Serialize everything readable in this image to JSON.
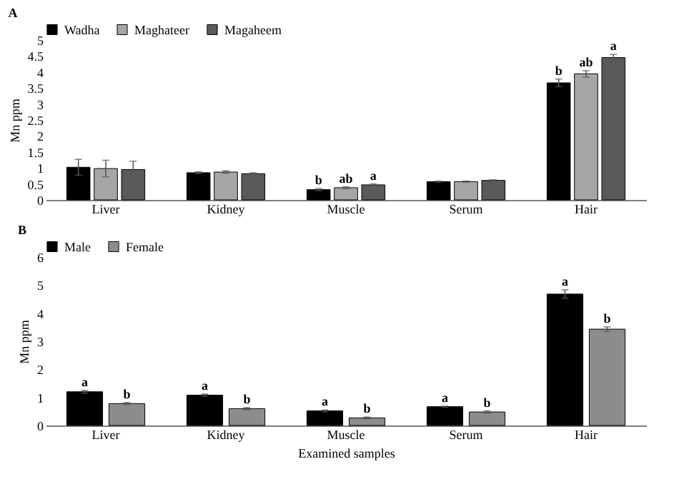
{
  "chart_data": [
    {
      "type": "bar",
      "title": "A",
      "ylabel": "Mn ppm",
      "categories": [
        "Liver",
        "Kidney",
        "Muscle",
        "Serum",
        "Hair"
      ],
      "ylim": [
        0,
        5
      ],
      "yticks": [
        0,
        0.5,
        1,
        1.5,
        2,
        2.5,
        3,
        3.5,
        4,
        4.5,
        5
      ],
      "grid": false,
      "legend": "top",
      "series": [
        {
          "name": "Wadha",
          "color": "#000000",
          "values": [
            1.02,
            0.85,
            0.32,
            0.57,
            3.66
          ],
          "errors": [
            0.25,
            0.03,
            0.03,
            0.02,
            0.12
          ],
          "value_labels": [
            null,
            null,
            "b",
            null,
            "b"
          ]
        },
        {
          "name": "Maghateer",
          "color": "#a6a6a6",
          "values": [
            0.98,
            0.87,
            0.38,
            0.57,
            3.94
          ],
          "errors": [
            0.26,
            0.04,
            0.03,
            0.02,
            0.1
          ],
          "value_labels": [
            null,
            null,
            "ab",
            null,
            "ab"
          ]
        },
        {
          "name": "Magaheem",
          "color": "#5a5a5a",
          "values": [
            0.95,
            0.82,
            0.47,
            0.61,
            4.45
          ],
          "errors": [
            0.26,
            0.03,
            0.03,
            0.02,
            0.1
          ],
          "value_labels": [
            null,
            null,
            "a",
            null,
            "a"
          ]
        }
      ]
    },
    {
      "type": "bar",
      "title": "B",
      "ylabel": "Mn ppm",
      "xlabel": "Examined samples",
      "categories": [
        "Liver",
        "Kidney",
        "Muscle",
        "Serum",
        "Hair"
      ],
      "ylim": [
        0,
        6
      ],
      "yticks": [
        0,
        1,
        2,
        3,
        4,
        5,
        6
      ],
      "grid": false,
      "legend": "top",
      "series": [
        {
          "name": "Male",
          "color": "#000000",
          "values": [
            1.2,
            1.08,
            0.52,
            0.67,
            4.68
          ],
          "errors": [
            0.05,
            0.04,
            0.03,
            0.02,
            0.15
          ],
          "value_labels": [
            "a",
            "a",
            "a",
            "a",
            "a"
          ]
        },
        {
          "name": "Female",
          "color": "#8c8c8c",
          "values": [
            0.78,
            0.6,
            0.27,
            0.48,
            3.43
          ],
          "errors": [
            0.04,
            0.04,
            0.03,
            0.04,
            0.08
          ],
          "value_labels": [
            "b",
            "b",
            "b",
            "b",
            "b"
          ]
        }
      ]
    }
  ]
}
